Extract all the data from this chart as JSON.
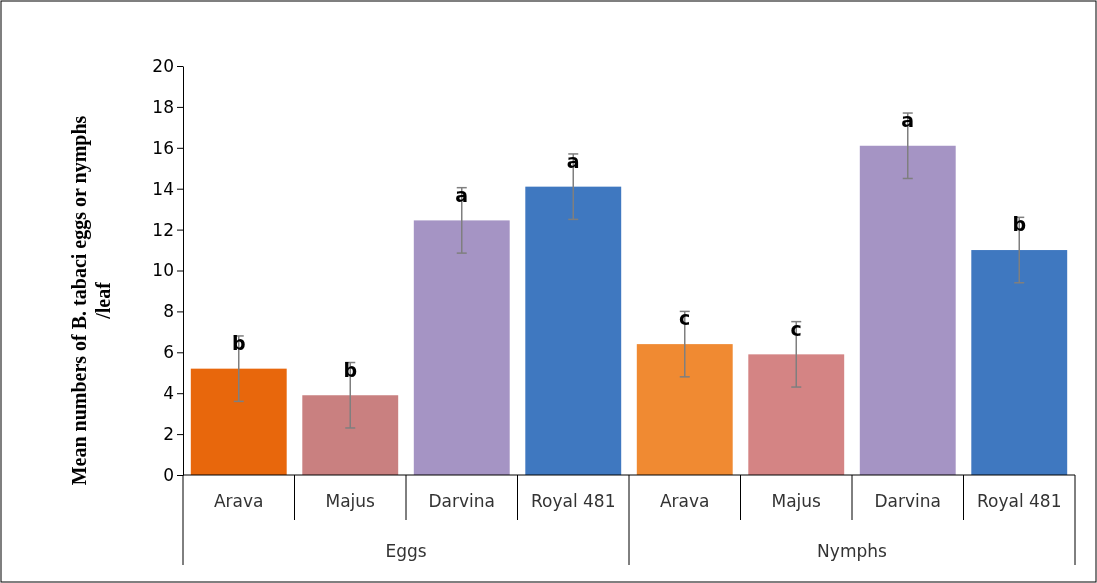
{
  "chart_data": {
    "type": "bar",
    "ylabel": "Mean numbers of B. tabaci eggs or nymphs /leaf",
    "categories": [
      "Arava",
      "Majus",
      "Darvina",
      "Royal 481",
      "Arava",
      "Majus",
      "Darvina",
      "Royal 481"
    ],
    "values": [
      5.2,
      3.9,
      12.45,
      14.1,
      6.4,
      5.9,
      16.1,
      11.0
    ],
    "colors": [
      "#e8670c",
      "#c98080",
      "#a594c4",
      "#3f78c0",
      "#f08a32",
      "#d48484",
      "#a594c4",
      "#3f78c0"
    ],
    "errors": [
      1.6,
      1.6,
      1.6,
      1.6,
      1.6,
      1.6,
      1.6,
      1.6
    ],
    "value_labels": [
      "b",
      "b",
      "a",
      "a",
      "c",
      "c",
      "a",
      "b"
    ],
    "annotations": [
      "Eggs",
      "Nymphs"
    ],
    "ylim": [
      0,
      20
    ],
    "yticks": [
      0,
      2,
      4,
      6,
      8,
      10,
      12,
      14,
      16,
      18,
      20
    ],
    "grid": false
  }
}
